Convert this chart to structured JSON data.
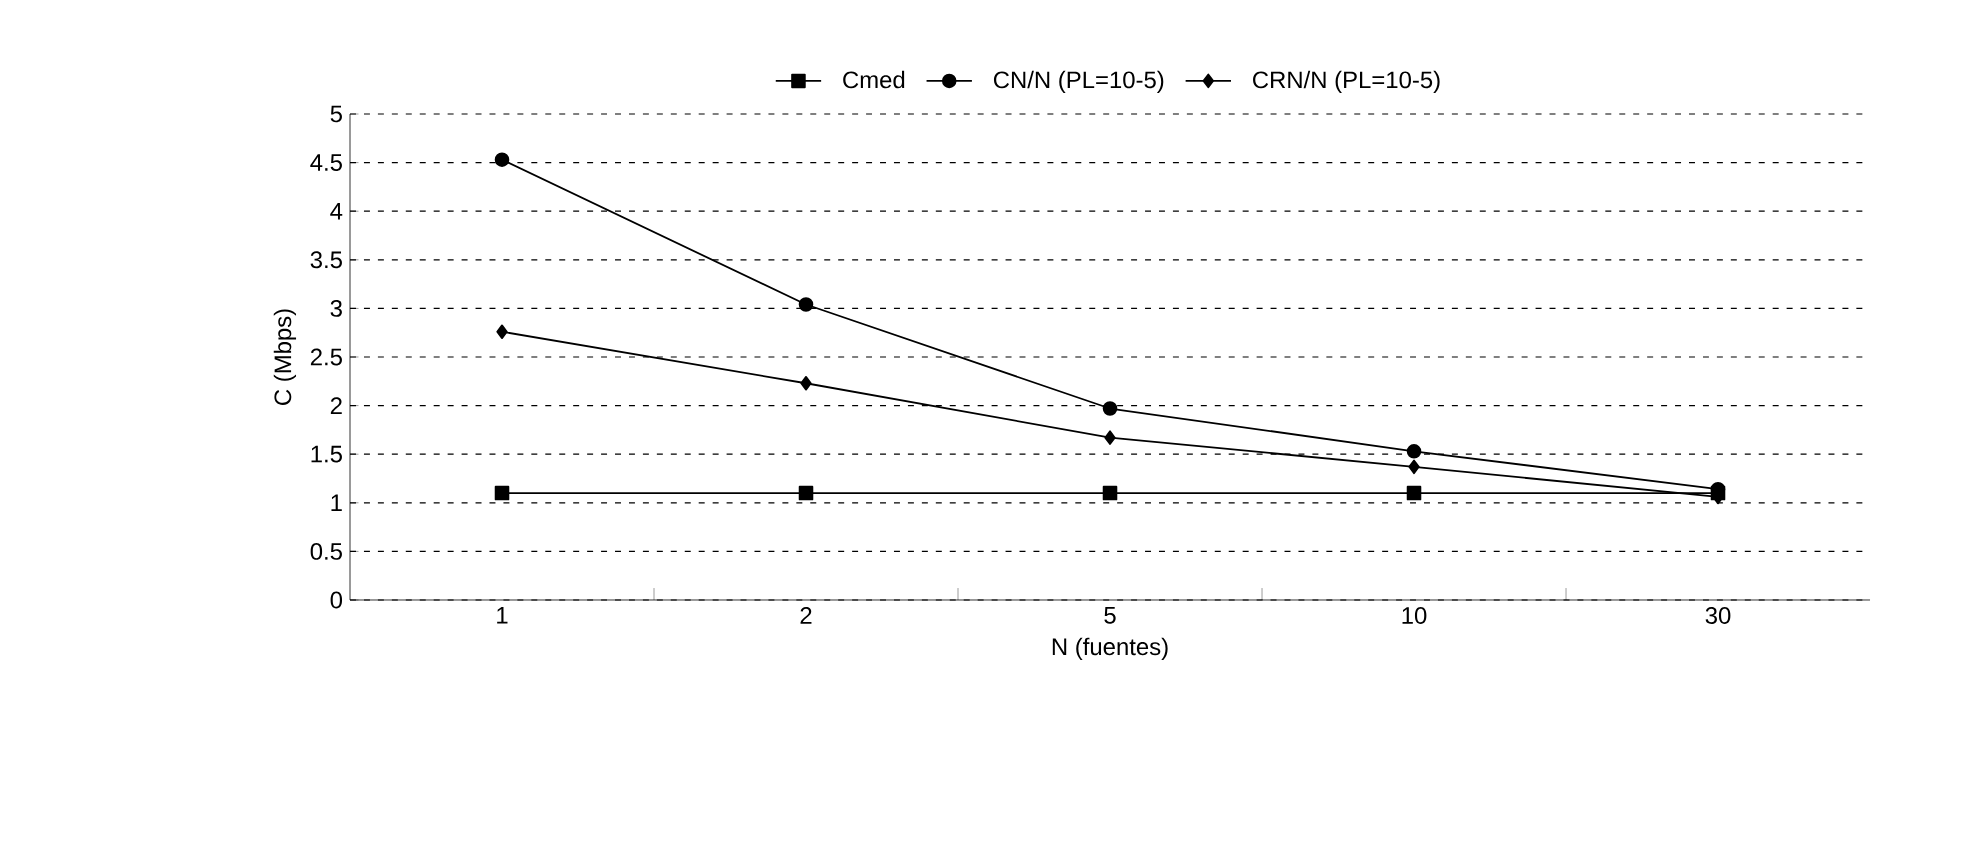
{
  "chart_data": {
    "type": "line",
    "categories": [
      "1",
      "2",
      "5",
      "10",
      "30"
    ],
    "xlabel": "N (fuentes)",
    "ylabel": "C (Mbps)",
    "ylim": [
      0,
      5
    ],
    "yticks": [
      0,
      0.5,
      1,
      1.5,
      2,
      2.5,
      3,
      3.5,
      4,
      4.5,
      5
    ],
    "grid": "y",
    "legend": "top",
    "line_style": "solid",
    "series": [
      {
        "name": "Cmed",
        "color": "#000000",
        "marker": "square",
        "values": [
          1.1,
          1.1,
          1.1,
          1.1,
          1.1
        ]
      },
      {
        "name": "CN/N (PL=10-5)",
        "color": "#000000",
        "marker": "circle",
        "values": [
          4.53,
          3.04,
          1.97,
          1.53,
          1.14
        ]
      },
      {
        "name": "CRN/N (PL=10-5)",
        "color": "#000000",
        "marker": "diamond",
        "values": [
          2.76,
          2.23,
          1.67,
          1.37,
          1.06
        ]
      }
    ]
  }
}
